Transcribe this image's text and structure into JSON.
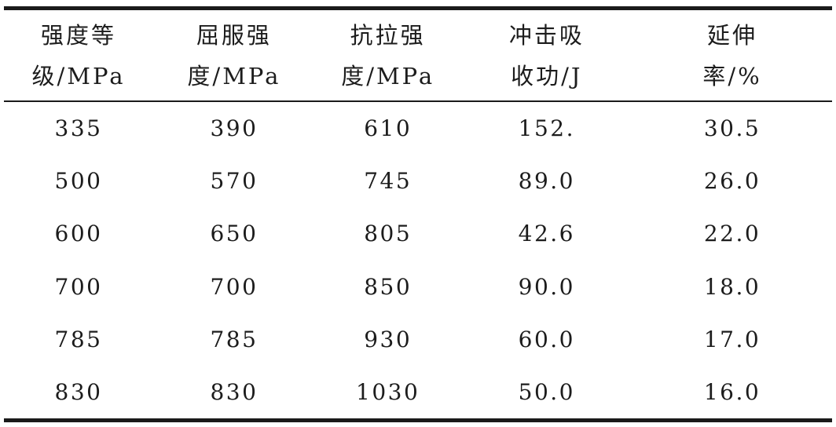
{
  "table": {
    "columns": [
      {
        "name": "strength-grade",
        "line1": "强度等",
        "line2": "级/MPa"
      },
      {
        "name": "yield-strength",
        "line1": "屈服强",
        "line2": "度/MPa"
      },
      {
        "name": "tensile-strength",
        "line1": "抗拉强",
        "line2": "度/MPa"
      },
      {
        "name": "impact-absorption",
        "line1": "冲击吸",
        "line2": "收功/J"
      },
      {
        "name": "elongation",
        "line1": "延伸",
        "line2": "率/%"
      }
    ],
    "rows": [
      [
        "335",
        "390",
        "610",
        "152.",
        "30.5"
      ],
      [
        "500",
        "570",
        "745",
        "89.0",
        "26.0"
      ],
      [
        "600",
        "650",
        "805",
        "42.6",
        "22.0"
      ],
      [
        "700",
        "700",
        "850",
        "90.0",
        "18.0"
      ],
      [
        "785",
        "785",
        "930",
        "60.0",
        "17.0"
      ],
      [
        "830",
        "830",
        "1030",
        "50.0",
        "16.0"
      ]
    ]
  },
  "chart_data": {
    "type": "table",
    "title": "",
    "categories": [
      "强度等级/MPa",
      "屈服强度/MPa",
      "抗拉强度/MPa",
      "冲击吸收功/J",
      "延伸率/%"
    ],
    "series": [
      {
        "name": "强度等级/MPa",
        "values": [
          335,
          500,
          600,
          700,
          785,
          830
        ]
      },
      {
        "name": "屈服强度/MPa",
        "values": [
          390,
          570,
          650,
          700,
          785,
          830
        ]
      },
      {
        "name": "抗拉强度/MPa",
        "values": [
          610,
          745,
          805,
          850,
          930,
          1030
        ]
      },
      {
        "name": "冲击吸收功/J",
        "values": [
          152,
          89.0,
          42.6,
          90.0,
          60.0,
          50.0
        ]
      },
      {
        "name": "延伸率/%",
        "values": [
          30.5,
          26.0,
          22.0,
          18.0,
          17.0,
          16.0
        ]
      }
    ],
    "colors": {
      "text": "#1c1c1c",
      "rule": "#1a1a1a",
      "background": "#ffffff"
    }
  }
}
